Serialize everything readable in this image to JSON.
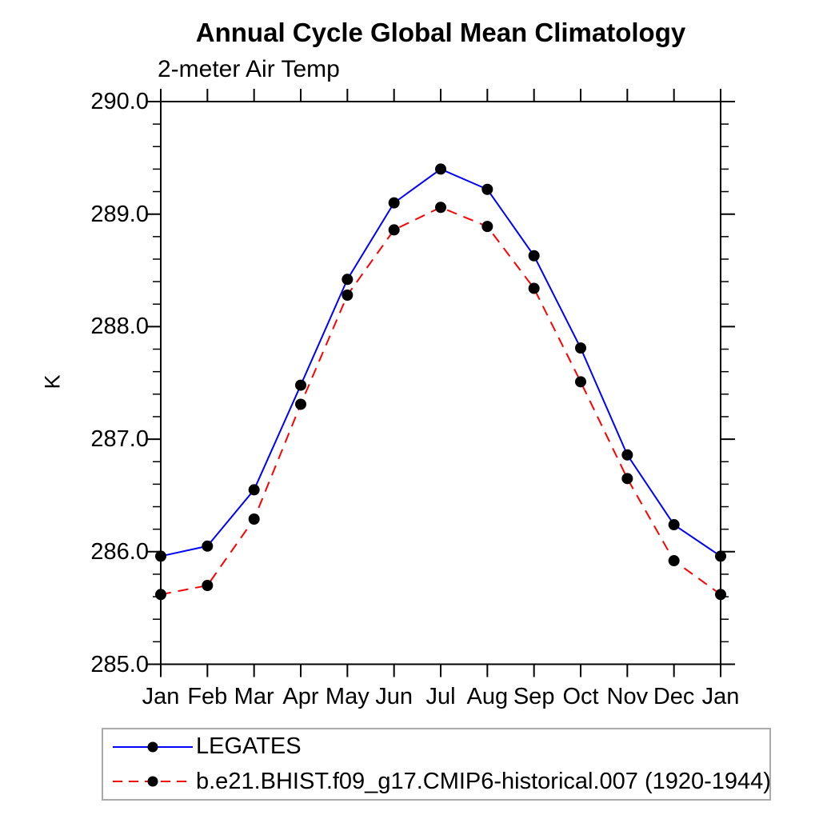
{
  "chart_data": {
    "type": "line",
    "title": "Annual Cycle Global Mean Climatology",
    "subtitle": "2-meter Air Temp",
    "ylabel": "K",
    "ylim": [
      285.0,
      290.0
    ],
    "ytick_step": 1.0,
    "ytick_minor_step": 0.2,
    "ytick_labels": [
      "285.0",
      "286.0",
      "287.0",
      "288.0",
      "289.0",
      "290.0"
    ],
    "categories": [
      "Jan",
      "Feb",
      "Mar",
      "Apr",
      "May",
      "Jun",
      "Jul",
      "Aug",
      "Sep",
      "Oct",
      "Nov",
      "Dec",
      "Jan"
    ],
    "series": [
      {
        "name": "LEGATES",
        "color": "#0000ff",
        "line_style": "solid",
        "marker": "filled-circle",
        "marker_color": "#000000",
        "values": [
          285.96,
          286.05,
          286.55,
          287.48,
          288.42,
          289.1,
          289.4,
          289.22,
          288.63,
          287.81,
          286.86,
          286.24,
          285.96
        ]
      },
      {
        "name": "b.e21.BHIST.f09_g17.CMIP6-historical.007 (1920-1944)",
        "color": "#ff0000",
        "line_style": "dashed",
        "marker": "filled-circle",
        "marker_color": "#000000",
        "values": [
          285.62,
          285.7,
          286.29,
          287.31,
          288.28,
          288.86,
          289.06,
          288.89,
          288.34,
          287.51,
          286.65,
          285.92,
          285.62
        ]
      }
    ],
    "grid": false,
    "legend_position": "bottom-left",
    "axis_color": "#000000",
    "legend_border_color": "#aaaaaa"
  }
}
